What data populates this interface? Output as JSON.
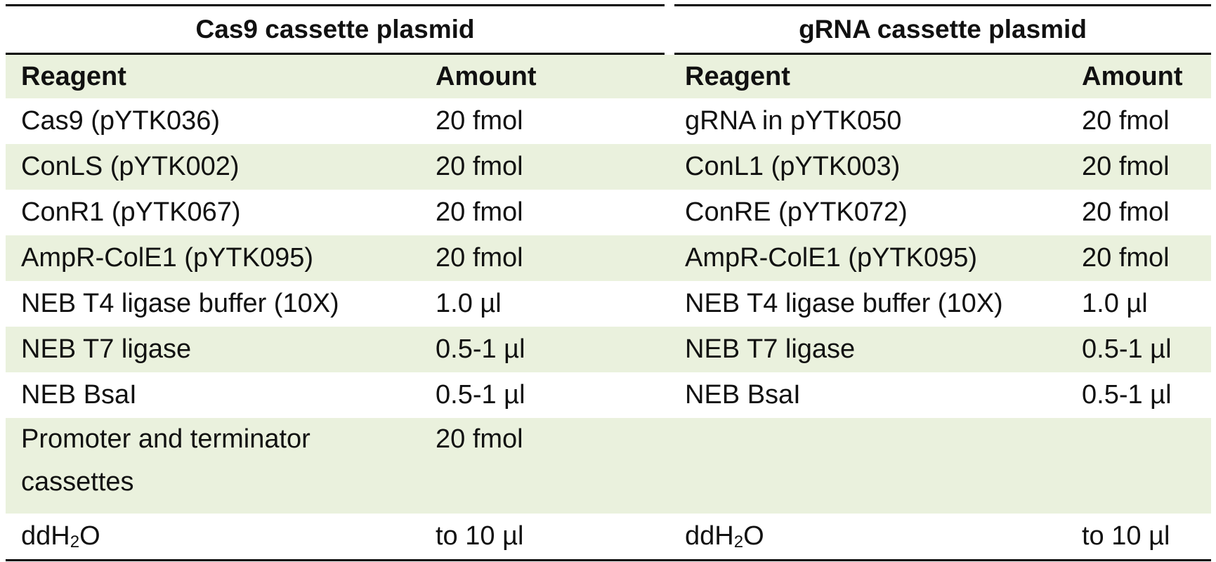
{
  "groups": {
    "left": "Cas9 cassette plasmid",
    "right": "gRNA cassette plasmid"
  },
  "headers": {
    "reagent_left": "Reagent",
    "amount_left": "Amount",
    "reagent_right": "Reagent",
    "amount_right": "Amount"
  },
  "rows": [
    {
      "r1": "Cas9 (pYTK036)",
      "a1": "20 fmol",
      "r2": "gRNA in pYTK050",
      "a2": "20 fmol"
    },
    {
      "r1": "ConLS (pYTK002)",
      "a1": "20 fmol",
      "r2": "ConL1 (pYTK003)",
      "a2": "20 fmol"
    },
    {
      "r1": "ConR1 (pYTK067)",
      "a1": "20 fmol",
      "r2": "ConRE (pYTK072)",
      "a2": "20 fmol"
    },
    {
      "r1": "AmpR-ColE1 (pYTK095)",
      "a1": "20 fmol",
      "r2": "AmpR-ColE1 (pYTK095)",
      "a2": "20 fmol"
    },
    {
      "r1": "NEB T4 ligase buffer (10X)",
      "a1": "1.0 µl",
      "r2": "NEB T4 ligase buffer (10X)",
      "a2": "1.0 µl"
    },
    {
      "r1": "NEB T7 ligase",
      "a1": "0.5-1 µl",
      "r2": "NEB T7 ligase",
      "a2": "0.5-1 µl"
    },
    {
      "r1": "NEB BsaI",
      "a1": "0.5-1 µl",
      "r2": "NEB BsaI",
      "a2": "0.5-1 µl"
    },
    {
      "r1": "Promoter and terminator cassettes",
      "a1": "20 fmol",
      "r2": "",
      "a2": ""
    }
  ],
  "water_row": {
    "r1_prefix": "ddH",
    "r1_sub": "2",
    "r1_suffix": "O",
    "a1": "to 10 µl",
    "r2_prefix": "ddH",
    "r2_sub": "2",
    "r2_suffix": "O",
    "a2": "to 10 µl"
  },
  "colors": {
    "shade": "#eaf1dd",
    "rule": "#000000"
  }
}
